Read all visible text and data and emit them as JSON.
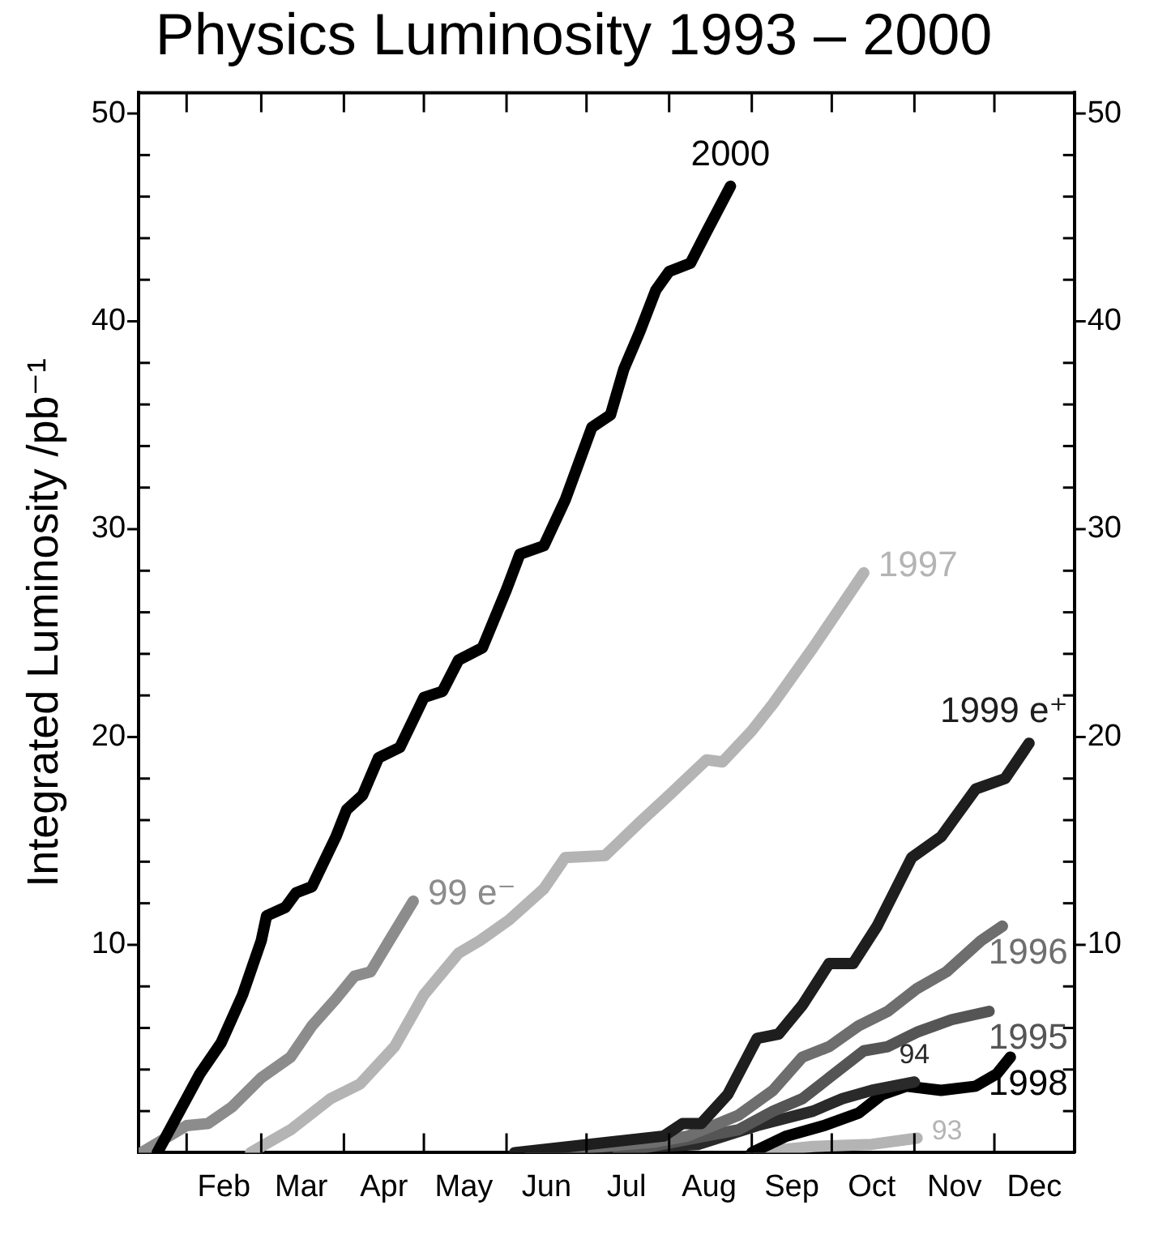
{
  "chart_data": {
    "type": "line",
    "title": "Physics Luminosity 1993 – 2000",
    "ylabel": "Integrated Luminosity /pb⁻¹",
    "xlim": [
      "--01-14",
      "--12-31"
    ],
    "xticks": [
      {
        "value": "--02-01",
        "label": null
      },
      {
        "value": "--02-15",
        "label": "Feb"
      },
      {
        "value": "--03-01",
        "label": null
      },
      {
        "value": "--03-16",
        "label": "Mar"
      },
      {
        "value": "--04-01",
        "label": null
      },
      {
        "value": "--04-16",
        "label": "Apr"
      },
      {
        "value": "--05-01",
        "label": null
      },
      {
        "value": "--05-16",
        "label": "May"
      },
      {
        "value": "--06-01",
        "label": null
      },
      {
        "value": "--06-16",
        "label": "Jun"
      },
      {
        "value": "--07-01",
        "label": null
      },
      {
        "value": "--07-16",
        "label": "Jul"
      },
      {
        "value": "--08-01",
        "label": null
      },
      {
        "value": "--08-16",
        "label": "Aug"
      },
      {
        "value": "--09-01",
        "label": null
      },
      {
        "value": "--09-16",
        "label": "Sep"
      },
      {
        "value": "--10-01",
        "label": null
      },
      {
        "value": "--10-16",
        "label": "Oct"
      },
      {
        "value": "--11-01",
        "label": null
      },
      {
        "value": "--11-16",
        "label": "Nov"
      },
      {
        "value": "--12-01",
        "label": null
      },
      {
        "value": "--12-16",
        "label": "Dec"
      }
    ],
    "ylim": [
      0,
      51
    ],
    "yticks": [
      {
        "value": 2,
        "label": null
      },
      {
        "value": 4,
        "label": null
      },
      {
        "value": 6,
        "label": null
      },
      {
        "value": 8,
        "label": null
      },
      10,
      {
        "value": 12,
        "label": null
      },
      {
        "value": 14,
        "label": null
      },
      {
        "value": 16,
        "label": null
      },
      {
        "value": 18,
        "label": null
      },
      20,
      {
        "value": 22,
        "label": null
      },
      {
        "value": 24,
        "label": null
      },
      {
        "value": 26,
        "label": null
      },
      {
        "value": 28,
        "label": null
      },
      30,
      {
        "value": 32,
        "label": null
      },
      {
        "value": 34,
        "label": null
      },
      {
        "value": 36,
        "label": null
      },
      {
        "value": 38,
        "label": null
      },
      40,
      {
        "value": 42,
        "label": null
      },
      {
        "value": 44,
        "label": null
      },
      {
        "value": 46,
        "label": null
      },
      {
        "value": 48,
        "label": null
      },
      50
    ],
    "y2lim": [
      0,
      51
    ],
    "y2ticks": [
      {
        "value": 2,
        "label": null
      },
      {
        "value": 4,
        "label": null
      },
      {
        "value": 6,
        "label": null
      },
      {
        "value": 8,
        "label": null
      },
      10,
      {
        "value": 12,
        "label": null
      },
      {
        "value": 14,
        "label": null
      },
      {
        "value": 16,
        "label": null
      },
      {
        "value": 18,
        "label": null
      },
      20,
      {
        "value": 22,
        "label": null
      },
      {
        "value": 24,
        "label": null
      },
      {
        "value": 26,
        "label": null
      },
      {
        "value": 28,
        "label": null
      },
      30,
      {
        "value": 32,
        "label": null
      },
      {
        "value": 34,
        "label": null
      },
      {
        "value": 36,
        "label": null
      },
      {
        "value": 38,
        "label": null
      },
      40,
      {
        "value": 42,
        "label": null
      },
      {
        "value": 44,
        "label": null
      },
      {
        "value": 46,
        "label": null
      },
      {
        "value": 48,
        "label": null
      },
      50
    ],
    "series": [
      {
        "name": "2000",
        "color": "#000000",
        "x": [
          "--01-21",
          "--02-06",
          "--02-14",
          "--02-22",
          "--03-01",
          "--03-03",
          "--03-10",
          "--03-14",
          "--03-20",
          "--03-29",
          "--04-02",
          "--04-08",
          "--04-14",
          "--04-22",
          "--05-01",
          "--05-08",
          "--05-14",
          "--05-23",
          "--06-01",
          "--06-06",
          "--06-15",
          "--06-23",
          "--06-29",
          "--07-03",
          "--07-10",
          "--07-15",
          "--07-21",
          "--07-27",
          "--08-01",
          "--08-09",
          "--08-15",
          "--08-24"
        ],
        "values": [
          0,
          3.8,
          5.3,
          7.6,
          10.2,
          11.4,
          11.8,
          12.5,
          12.8,
          15.2,
          16.5,
          17.2,
          19.0,
          19.5,
          21.9,
          22.2,
          23.7,
          24.3,
          27.1,
          28.8,
          29.2,
          31.4,
          33.5,
          34.9,
          35.5,
          37.7,
          39.5,
          41.5,
          42.4,
          42.8,
          44.3,
          46.5
        ]
      },
      {
        "name": "99 e⁻",
        "color": "#8c8c8c",
        "x": [
          "--01-15",
          "--02-01",
          "--02-09",
          "--02-18",
          "--03-01",
          "--03-12",
          "--03-20",
          "--03-29",
          "--04-05",
          "--04-11",
          "--04-18",
          "--04-27"
        ],
        "values": [
          0,
          1.3,
          1.4,
          2.2,
          3.6,
          4.6,
          6.1,
          7.4,
          8.5,
          8.7,
          10.2,
          12.1
        ]
      },
      {
        "name": "1997",
        "color": "#b4b4b4",
        "x": [
          "--02-25",
          "--03-12",
          "--03-27",
          "--04-07",
          "--04-20",
          "--05-01",
          "--05-14",
          "--05-22",
          "--06-02",
          "--06-15",
          "--06-23",
          "--07-08",
          "--07-21",
          "--08-01",
          "--08-15",
          "--08-21",
          "--09-01",
          "--09-09",
          "--09-24",
          "--10-13"
        ],
        "values": [
          0,
          1.1,
          2.6,
          3.3,
          5.1,
          7.6,
          9.6,
          10.2,
          11.2,
          12.7,
          14.2,
          14.3,
          15.9,
          17.2,
          18.9,
          18.8,
          20.3,
          21.6,
          24.3,
          27.9
        ]
      },
      {
        "name": "1999 e⁺",
        "color": "#1e1e1e",
        "x": [
          "--06-04",
          "--07-30",
          "--08-06",
          "--08-13",
          "--08-23",
          "--09-03",
          "--09-11",
          "--09-20",
          "--09-30",
          "--10-09",
          "--10-18",
          "--10-31",
          "--11-11",
          "--11-24",
          "--12-05",
          "--12-14"
        ],
        "values": [
          0,
          0.8,
          1.4,
          1.4,
          2.8,
          5.5,
          5.7,
          7.1,
          9.1,
          9.1,
          10.9,
          14.2,
          15.2,
          17.5,
          18.0,
          19.7
        ]
      },
      {
        "name": "1996",
        "color": "#6e6e6e",
        "x": [
          "--06-10",
          "--07-26",
          "--08-08",
          "--08-27",
          "--09-09",
          "--09-20",
          "--09-30",
          "--10-11",
          "--10-22",
          "--11-02",
          "--11-13",
          "--11-26",
          "--12-04"
        ],
        "values": [
          0,
          0.5,
          0.8,
          1.8,
          3.0,
          4.6,
          5.1,
          6.1,
          6.8,
          7.9,
          8.7,
          10.2,
          10.9
        ]
      },
      {
        "name": "1995",
        "color": "#555555",
        "x": [
          "--07-13",
          "--08-27",
          "--09-09",
          "--09-20",
          "--09-30",
          "--10-13",
          "--10-22",
          "--11-02",
          "--11-15",
          "--11-29"
        ],
        "values": [
          0,
          1.1,
          2.0,
          2.6,
          3.6,
          4.9,
          5.1,
          5.8,
          6.4,
          6.8
        ]
      },
      {
        "name": "94",
        "color": "#2a2a2a",
        "x": [
          "--06-10",
          "--08-12",
          "--09-03",
          "--09-24",
          "--10-05",
          "--10-16",
          "--11-01"
        ],
        "values": [
          0,
          0.4,
          1.3,
          2.0,
          2.6,
          3.0,
          3.4
        ]
      },
      {
        "name": "1998",
        "color": "#000000",
        "x": [
          "--09-01",
          "--09-14",
          "--09-28",
          "--10-11",
          "--10-20",
          "--10-29",
          "--11-11",
          "--11-24",
          "--12-02",
          "--12-07"
        ],
        "values": [
          0,
          0.8,
          1.3,
          1.9,
          2.8,
          3.2,
          3.0,
          3.2,
          3.8,
          4.6
        ]
      },
      {
        "name": "93",
        "color": "#b4b4b4",
        "x": [
          "--09-01",
          "--09-24",
          "--10-16",
          "--11-02"
        ],
        "values": [
          0,
          0.3,
          0.4,
          0.7
        ]
      }
    ]
  }
}
